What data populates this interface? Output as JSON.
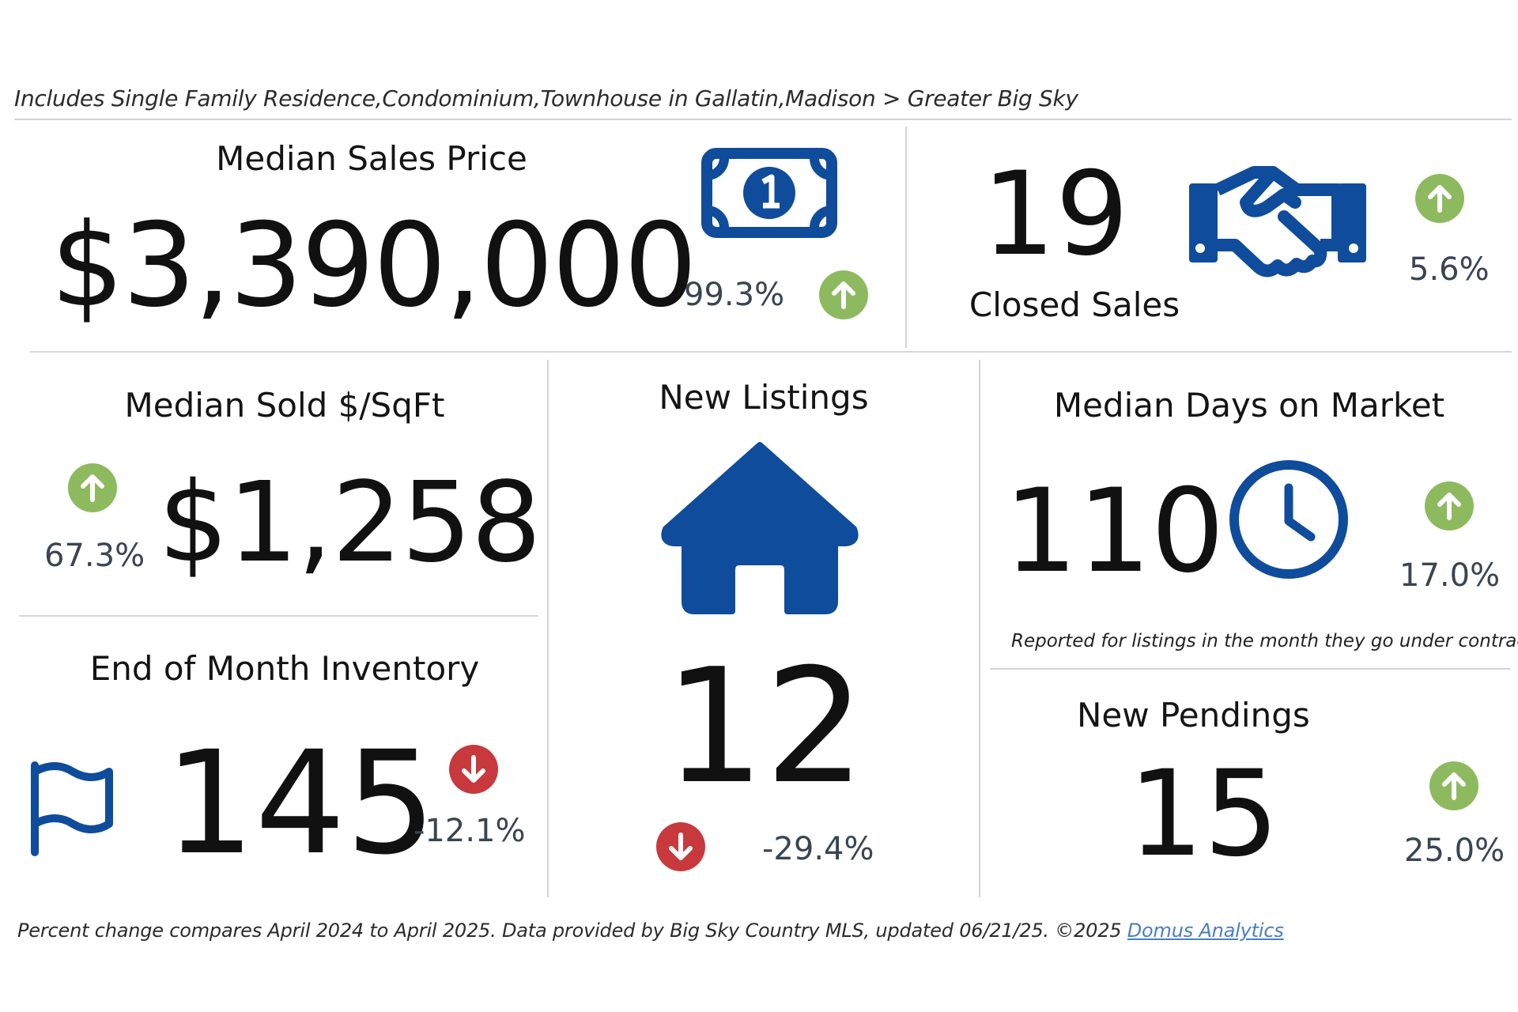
{
  "header": {
    "note": "Includes Single Family Residence,Condominium,Townhouse in Gallatin,Madison > Greater Big Sky"
  },
  "median_sales_price": {
    "title": "Median Sales Price",
    "value": "$3,390,000",
    "pct": "99.3%",
    "direction": "up",
    "icon": "money-bill-icon"
  },
  "closed_sales": {
    "title": "Closed Sales",
    "value": "19",
    "pct": "5.6%",
    "direction": "up",
    "icon": "handshake-icon"
  },
  "median_sold_sqft": {
    "title": "Median Sold $/SqFt",
    "value": "$1,258",
    "pct": "67.3%",
    "direction": "up"
  },
  "new_listings": {
    "title": "New Listings",
    "value": "12",
    "pct": "-29.4%",
    "direction": "down",
    "icon": "house-icon"
  },
  "median_dom": {
    "title": "Median Days on Market",
    "value": "110",
    "pct": "17.0%",
    "direction": "up",
    "icon": "clock-icon",
    "note": "Reported for listings in the month they go under contract."
  },
  "inventory": {
    "title": "End of Month Inventory",
    "value": "145",
    "pct": "-12.1%",
    "direction": "down",
    "icon": "flag-icon"
  },
  "new_pendings": {
    "title": "New Pendings",
    "value": "15",
    "pct": "25.0%",
    "direction": "up"
  },
  "footer": {
    "note": "Percent change compares April 2024 to April 2025.  Data provided by Big Sky Country MLS, updated 06/21/25. ©2025 ",
    "link_label": "Domus Analytics"
  },
  "colors": {
    "brand_blue": "#0f4c9c",
    "up_green": "#8dba5e",
    "down_red": "#c7393d",
    "pct_text": "#3a4553"
  }
}
